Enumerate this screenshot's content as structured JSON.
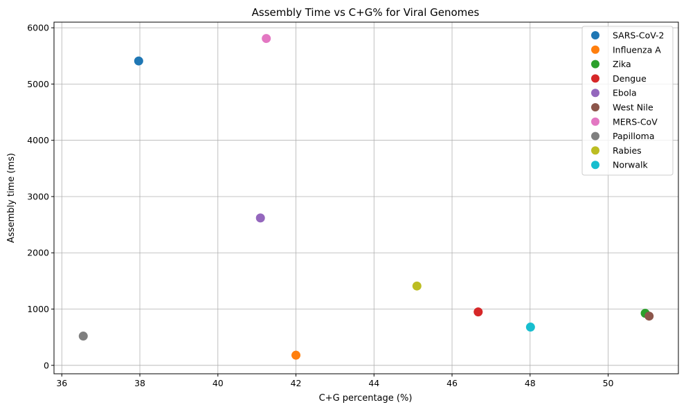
{
  "chart_data": {
    "type": "scatter",
    "title": "Assembly Time vs C+G% for Viral Genomes",
    "xlabel": "C+G percentage (%)",
    "ylabel": "Assembly time (ms)",
    "xlim": [
      35.8,
      51.8
    ],
    "ylim": [
      -150,
      6100
    ],
    "xticks": [
      36,
      38,
      40,
      42,
      44,
      46,
      48,
      50
    ],
    "yticks": [
      0,
      1000,
      2000,
      3000,
      4000,
      5000,
      6000
    ],
    "grid": true,
    "legend_position": "top-right",
    "series": [
      {
        "name": "SARS-CoV-2",
        "color": "#1f77b4",
        "x": 37.97,
        "y": 5410
      },
      {
        "name": "Influenza A",
        "color": "#ff7f0e",
        "x": 42.0,
        "y": 180
      },
      {
        "name": "Zika",
        "color": "#2ca02c",
        "x": 50.95,
        "y": 925
      },
      {
        "name": "Dengue",
        "color": "#d62728",
        "x": 46.67,
        "y": 950
      },
      {
        "name": "Ebola",
        "color": "#9467bd",
        "x": 41.09,
        "y": 2620
      },
      {
        "name": "West Nile",
        "color": "#8c564b",
        "x": 51.05,
        "y": 875
      },
      {
        "name": "MERS-CoV",
        "color": "#e377c2",
        "x": 41.24,
        "y": 5810
      },
      {
        "name": "Papilloma",
        "color": "#7f7f7f",
        "x": 36.55,
        "y": 520
      },
      {
        "name": "Rabies",
        "color": "#bcbd22",
        "x": 45.1,
        "y": 1410
      },
      {
        "name": "Norwalk",
        "color": "#17becf",
        "x": 48.01,
        "y": 680
      }
    ]
  }
}
